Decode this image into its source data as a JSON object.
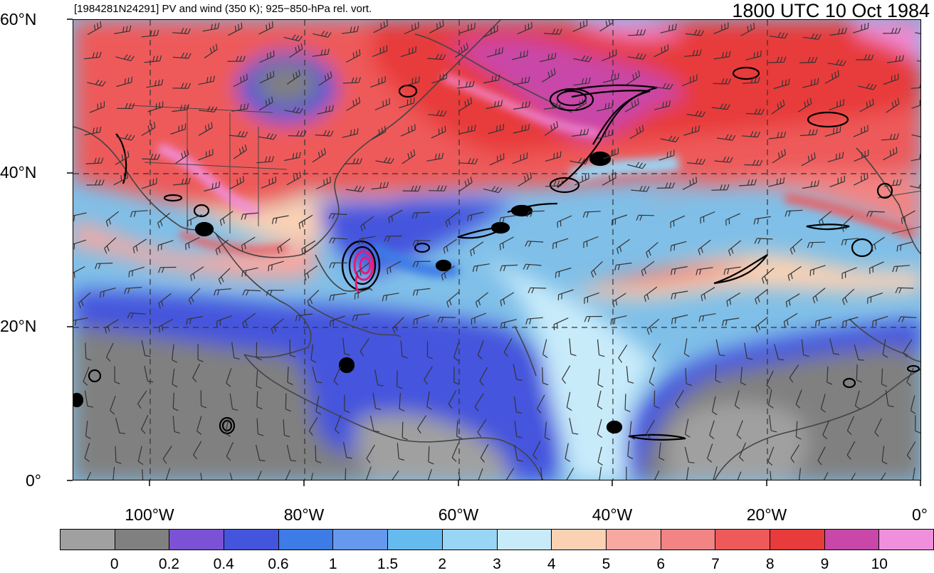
{
  "title": {
    "left": "[1984281N24291] PV and wind (350 K); 925−850-hPa rel. vort.",
    "right": "1800 UTC 10 Oct 1984"
  },
  "axes": {
    "lat_labels": [
      "60°N",
      "40°N",
      "20°N",
      "0°"
    ],
    "lon_labels": [
      "100°W",
      "80°W",
      "60°W",
      "40°W",
      "20°W",
      "0°"
    ],
    "lat_range": [
      0,
      60
    ],
    "lon_range": [
      -110,
      0
    ]
  },
  "colorbar": {
    "labels": [
      "0",
      "0.2",
      "0.4",
      "0.6",
      "1",
      "1.5",
      "2",
      "3",
      "4",
      "5",
      "6",
      "7",
      "8",
      "9",
      "10"
    ],
    "colors": [
      "#a0a0a0",
      "#808080",
      "#7b52d6",
      "#4455dd",
      "#3d7be6",
      "#6699ee",
      "#66bbee",
      "#99d5f5",
      "#c8ebfa",
      "#fbd1b4",
      "#f7a8a0",
      "#f28484",
      "#ee5a5a",
      "#e83b3b",
      "#c847a8",
      "#f090dd"
    ]
  },
  "colors": {
    "storm_contour": "#e8197a",
    "vorticity_contour": "#000000",
    "coastline": "#444444",
    "grid": "#333333"
  }
}
